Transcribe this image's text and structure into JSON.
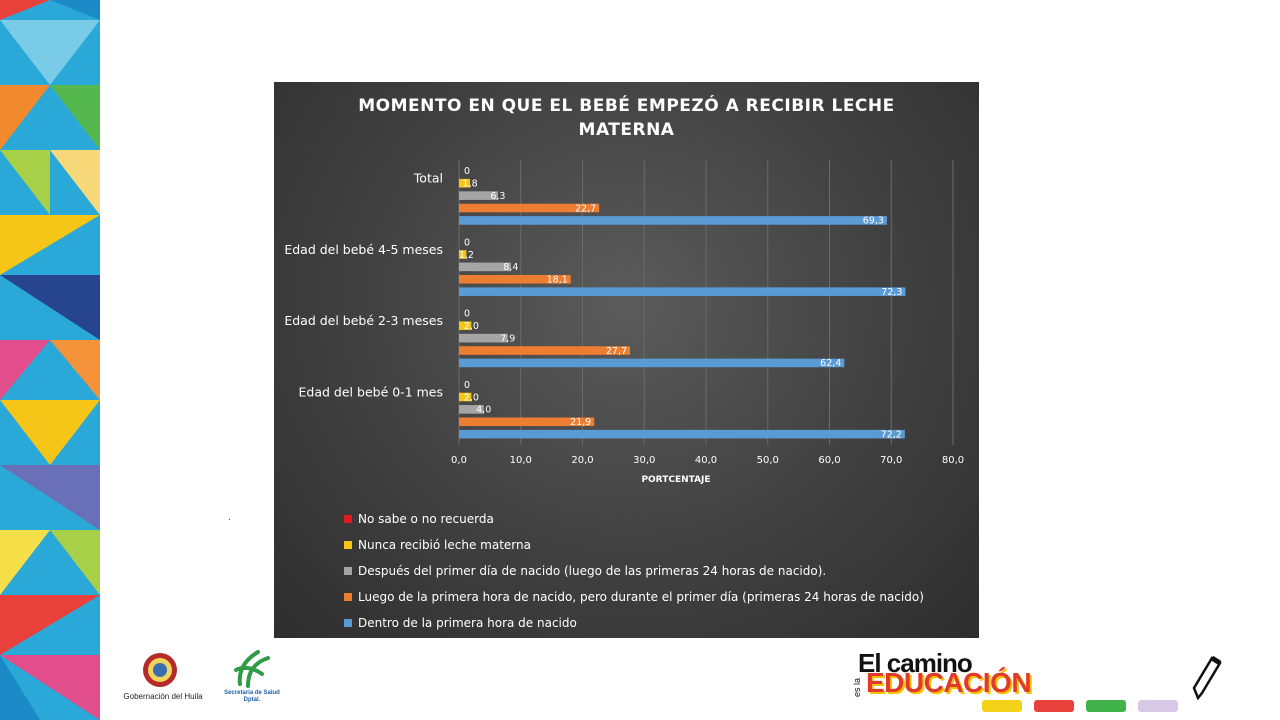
{
  "chart_data": {
    "type": "bar",
    "orientation": "horizontal",
    "title": "MOMENTO  EN QUE EL BEBÉ EMPEZÓ A RECIBIR LECHE MATERNA",
    "xlabel": "PORTCENTAJE",
    "ylabel": "",
    "xlim": [
      0,
      80
    ],
    "xticks": [
      "0,0",
      "10,0",
      "20,0",
      "30,0",
      "40,0",
      "50,0",
      "60,0",
      "70,0",
      "80,0"
    ],
    "grid": true,
    "legend_position": "bottom",
    "categories": [
      "Total",
      "Edad del bebé 4-5 meses",
      "Edad del bebé 2-3 meses",
      "Edad del bebé 0-1 mes"
    ],
    "series": [
      {
        "name": "No sabe o no recuerda",
        "color": "#e31a1c",
        "values": [
          0,
          0,
          0,
          0
        ],
        "labels": [
          "0",
          "0",
          "0",
          "0"
        ]
      },
      {
        "name": "Nunca recibió leche materna",
        "color": "#f5c518",
        "values": [
          1.8,
          1.2,
          2.0,
          2.0
        ],
        "labels": [
          "1,8",
          "1,2",
          "2,0",
          "2,0"
        ]
      },
      {
        "name": "Después del primer día de nacido (luego de las primeras 24 horas de nacido).",
        "color": "#a5a5a5",
        "values": [
          6.3,
          8.4,
          7.9,
          4.0
        ],
        "labels": [
          "6,3",
          "8,4",
          "7,9",
          "4,0"
        ]
      },
      {
        "name": "Luego de la primera hora de nacido, pero durante el primer día (primeras 24 horas de nacido)",
        "color": "#ed7d31",
        "values": [
          22.7,
          18.1,
          27.7,
          21.9
        ],
        "labels": [
          "22,7",
          "18,1",
          "27,7",
          "21,9"
        ]
      },
      {
        "name": "Dentro de la primera hora de nacido",
        "color": "#5b9bd5",
        "values": [
          69.3,
          72.3,
          62.4,
          72.2
        ],
        "labels": [
          "69,3",
          "72,3",
          "62,4",
          "72,2"
        ]
      }
    ]
  },
  "footer": {
    "gob_label": "Gobernación del Huila",
    "sec_label_1": "Secretaría de Salud",
    "sec_label_2": "Dptal.",
    "brand_top": "El camino",
    "brand_es": "es la",
    "brand_main": "EDUCACIÓN"
  },
  "misc": {
    "dot": "."
  }
}
